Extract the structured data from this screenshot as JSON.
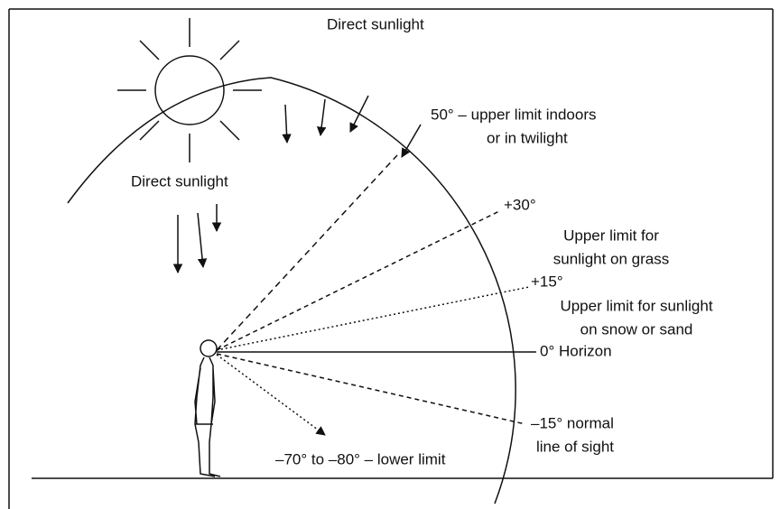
{
  "labels": [
    {
      "lines": [
        "Direct sunlight"
      ]
    },
    {
      "lines": [
        "50° – upper limit indoors",
        "or in twilight"
      ]
    },
    {
      "lines": [
        "Direct sunlight"
      ]
    },
    {
      "lines": [
        "+30°"
      ]
    },
    {
      "lines": [
        "Upper limit for",
        "sunlight on grass"
      ]
    },
    {
      "lines": [
        "+15°"
      ]
    },
    {
      "lines": [
        "Upper limit for sunlight",
        "on snow or sand"
      ]
    },
    {
      "lines": [
        "0° Horizon"
      ]
    },
    {
      "lines": [
        "–15° normal",
        "line of sight"
      ]
    },
    {
      "lines": [
        "–70° to –80° – lower limit"
      ]
    }
  ]
}
